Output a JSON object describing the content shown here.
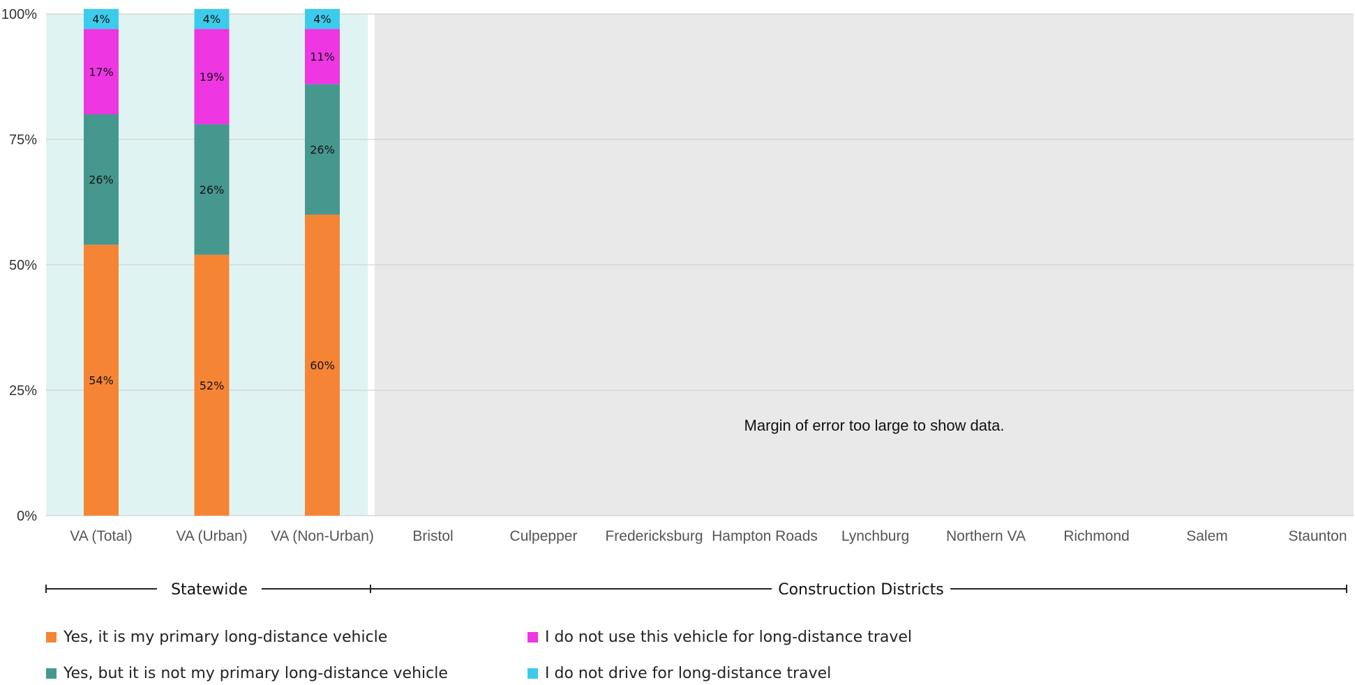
{
  "chart_data": {
    "type": "bar",
    "stacked": true,
    "categories": [
      "VA (Total)",
      "VA (Urban)",
      "VA (Non-Urban)",
      "Bristol",
      "Culpepper",
      "Fredericksburg",
      "Hampton Roads",
      "Lynchburg",
      "Northern VA",
      "Richmond",
      "Salem",
      "Staunton"
    ],
    "series": [
      {
        "name": "Yes, it is my primary long-distance vehicle",
        "color": "#F58534",
        "values": [
          54,
          52,
          60,
          null,
          null,
          null,
          null,
          null,
          null,
          null,
          null,
          null
        ],
        "labels": [
          "54%",
          "52%",
          "60%"
        ]
      },
      {
        "name": "Yes, but it is not my primary long-distance vehicle",
        "color": "#46988F",
        "values": [
          26,
          26,
          26,
          null,
          null,
          null,
          null,
          null,
          null,
          null,
          null,
          null
        ],
        "labels": [
          "26%",
          "26%",
          "26%"
        ]
      },
      {
        "name": "I do not use this vehicle for long-distance travel",
        "color": "#EE36E3",
        "values": [
          17,
          19,
          11,
          null,
          null,
          null,
          null,
          null,
          null,
          null,
          null,
          null
        ],
        "labels": [
          "17%",
          "19%",
          "11%"
        ]
      },
      {
        "name": "I do not drive for long-distance travel",
        "color": "#3CCBEB",
        "values": [
          4,
          4,
          4,
          null,
          null,
          null,
          null,
          null,
          null,
          null,
          null,
          null
        ],
        "labels": [
          "4%",
          "4%",
          "4%"
        ]
      }
    ],
    "ylim": [
      0,
      100
    ],
    "y_ticks": [
      "0%",
      "25%",
      "50%",
      "75%",
      "100%"
    ],
    "grid": true,
    "groups": [
      {
        "name": "Statewide",
        "categories": [
          "VA (Total)",
          "VA (Urban)",
          "VA (Non-Urban)"
        ],
        "background": "#DFF4F2"
      },
      {
        "name": "Construction Districts",
        "categories": [
          "Bristol",
          "Culpepper",
          "Fredericksburg",
          "Hampton Roads",
          "Lynchburg",
          "Northern VA",
          "Richmond",
          "Salem",
          "Staunton"
        ],
        "background": "#E9E9E9"
      }
    ],
    "annotation": "Margin of error too large to show data.",
    "legend_position": "bottom"
  }
}
